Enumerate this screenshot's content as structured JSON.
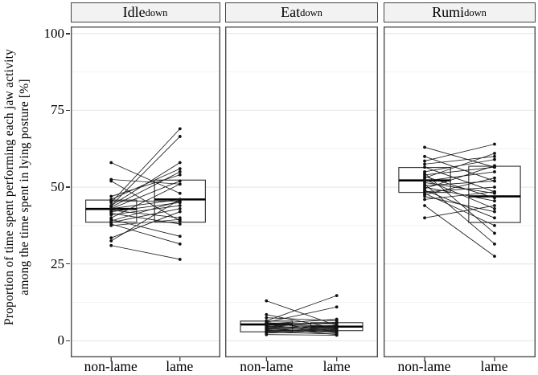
{
  "figure": {
    "y_axis": {
      "label_line1": "Proportion of time spent performing each jaw activity",
      "label_line2": "among the time spent in lying posture [%]",
      "tick_labels": [
        "100",
        "75",
        "50",
        "25",
        "0"
      ]
    }
  },
  "chart_data": {
    "type": "line",
    "subtype": "paired-points-with-boxplots",
    "title": "",
    "xlabel": "",
    "ylabel": "Proportion of time spent performing each jaw activity among the time spent in lying posture [%]",
    "ylim": [
      -5.4,
      102.3
    ],
    "y_major_ticks": [
      0,
      25,
      50,
      75,
      100
    ],
    "y_minor_gridlines": [
      12.5,
      37.5,
      62.5,
      87.5
    ],
    "grid": "on",
    "legend": "none",
    "categories": [
      "non-lame",
      "lame"
    ],
    "facets": [
      {
        "title_main": "Idle",
        "title_sub": "down",
        "box": {
          "non_lame": {
            "q1": 38.6,
            "median": 42.9,
            "q3": 45.8
          },
          "lame": {
            "q1": 38.6,
            "median": 46.0,
            "q3": 52.3
          }
        },
        "pairs": [
          [
            58,
            48
          ],
          [
            52.5,
            51
          ],
          [
            52,
            39
          ],
          [
            47,
            54
          ],
          [
            46,
            56
          ],
          [
            45.5,
            45.5
          ],
          [
            45,
            69
          ],
          [
            44,
            66.5
          ],
          [
            44,
            58
          ],
          [
            43.5,
            55
          ],
          [
            43,
            52
          ],
          [
            43,
            46
          ],
          [
            42.5,
            40
          ],
          [
            42,
            45
          ],
          [
            41.5,
            38
          ],
          [
            41,
            44
          ],
          [
            40,
            51
          ],
          [
            39.5,
            34
          ],
          [
            39,
            45.5
          ],
          [
            38.5,
            43
          ],
          [
            38,
            31.5
          ],
          [
            37.5,
            39.5
          ],
          [
            33.5,
            42
          ],
          [
            32.5,
            46
          ],
          [
            31,
            26.5
          ]
        ]
      },
      {
        "title_main": "Eat",
        "title_sub": "down",
        "box": {
          "non_lame": {
            "q1": 2.9,
            "median": 5.3,
            "q3": 6.4
          },
          "lame": {
            "q1": 3.3,
            "median": 4.6,
            "q3": 5.9
          }
        },
        "pairs": [
          [
            13,
            5
          ],
          [
            8.5,
            4
          ],
          [
            7.5,
            6.5
          ],
          [
            6.5,
            14.7
          ],
          [
            6,
            11
          ],
          [
            6,
            3
          ],
          [
            5.8,
            5.5
          ],
          [
            5.5,
            7
          ],
          [
            5.3,
            2.5
          ],
          [
            5.2,
            4.8
          ],
          [
            5,
            5.8
          ],
          [
            4.8,
            3.5
          ],
          [
            4.6,
            6
          ],
          [
            4.5,
            4.5
          ],
          [
            4.3,
            2
          ],
          [
            4.2,
            5
          ],
          [
            4,
            4.2
          ],
          [
            3.8,
            3
          ],
          [
            3.6,
            4.6
          ],
          [
            3.4,
            2.8
          ],
          [
            3.2,
            4
          ],
          [
            3,
            3.8
          ],
          [
            2.8,
            2.2
          ],
          [
            2.5,
            3.4
          ],
          [
            2,
            1.8
          ]
        ]
      },
      {
        "title_main": "Rumi",
        "title_sub": "down",
        "box": {
          "non_lame": {
            "q1": 48.3,
            "median": 52.2,
            "q3": 56.4
          },
          "lame": {
            "q1": 38.5,
            "median": 47.0,
            "q3": 56.8
          }
        },
        "pairs": [
          [
            63,
            56.5
          ],
          [
            60,
            52
          ],
          [
            58.5,
            64
          ],
          [
            57.5,
            60
          ],
          [
            56.5,
            48.5
          ],
          [
            55,
            59
          ],
          [
            54.5,
            35
          ],
          [
            54,
            56.5
          ],
          [
            53.5,
            46.5
          ],
          [
            53,
            61
          ],
          [
            52.5,
            43
          ],
          [
            52,
            55
          ],
          [
            51.5,
            48
          ],
          [
            51,
            31.5
          ],
          [
            50.5,
            52
          ],
          [
            50,
            45.5
          ],
          [
            49.5,
            57
          ],
          [
            49,
            40
          ],
          [
            48.5,
            50
          ],
          [
            48,
            37.5
          ],
          [
            47.5,
            53
          ],
          [
            47,
            42
          ],
          [
            46,
            48.5
          ],
          [
            44,
            27.5
          ],
          [
            40,
            44
          ]
        ]
      }
    ],
    "colors": {
      "point": "#111111",
      "pair_line": "#1c1c1c",
      "box_border": "#3c3c3c",
      "box_fill": "#ffffff",
      "median": "#000000",
      "panel_border": "#4d4d4d",
      "strip_bg": "#f2f2f2",
      "grid_major": "#e4e4e4",
      "grid_minor": "#f2f2f2",
      "tick_mark": "#333333"
    }
  }
}
